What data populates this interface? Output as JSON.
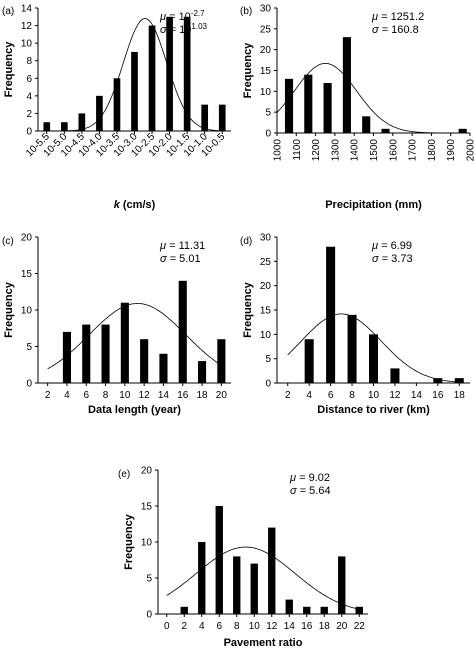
{
  "chart_data": [
    {
      "id": "a",
      "panel_label": "(a)",
      "type": "bar",
      "xlabel": "k (cm/s)",
      "ylabel": "Frequency",
      "ylim": [
        0,
        14
      ],
      "yticks": [
        0,
        2,
        4,
        6,
        8,
        10,
        12,
        14
      ],
      "categories": [
        "10-5.5",
        "10-5.0",
        "10-4.5",
        "10-4.0",
        "10-3.5",
        "10-3.0",
        "10-2.5",
        "10-2.0",
        "10-1.5",
        "10-1.0",
        "10-0.5"
      ],
      "values": [
        1,
        1,
        2,
        4,
        6,
        9,
        12,
        13,
        13,
        3,
        3
      ],
      "fit_curve": {
        "type": "normal",
        "mu_exp": -2.7,
        "sigma_exp": 1.03,
        "peak": 12.8
      },
      "stats": {
        "mu_prefix": " = 10",
        "mu_sup": "-2.7",
        "sigma_prefix": " = 10",
        "sigma_sup": "1.03"
      }
    },
    {
      "id": "b",
      "panel_label": "(b)",
      "type": "bar",
      "xlabel": "Precipitation (mm)",
      "ylabel": "Frequency",
      "ylim": [
        0,
        30
      ],
      "yticks": [
        0,
        5,
        10,
        15,
        20,
        25,
        30
      ],
      "xticks": [
        "1000",
        "1100",
        "1200",
        "1300",
        "1400",
        "1500",
        "1600",
        "1700",
        "1800",
        "1900",
        "2000"
      ],
      "x": [
        1100,
        1200,
        1300,
        1400,
        1500,
        1600,
        1700,
        1800,
        1900,
        2000
      ],
      "values": [
        13,
        14,
        12,
        23,
        4,
        1,
        0,
        0,
        0,
        1
      ],
      "fit_curve": {
        "type": "normal",
        "mu": 1251.2,
        "sigma": 160.8,
        "peak": 16.7
      },
      "stats": {
        "mu_text": " = 1251.2",
        "sigma_text": " = 160.8"
      }
    },
    {
      "id": "c",
      "panel_label": "(c)",
      "type": "bar",
      "xlabel": "Data length (year)",
      "ylabel": "Frequency",
      "ylim": [
        0,
        20
      ],
      "yticks": [
        0,
        5,
        10,
        15,
        20
      ],
      "xticks": [
        "2",
        "4",
        "6",
        "8",
        "10",
        "12",
        "14",
        "16",
        "18",
        "20"
      ],
      "x": [
        4,
        6,
        8,
        10,
        12,
        14,
        16,
        18,
        20
      ],
      "values": [
        7,
        8,
        8,
        11,
        6,
        4,
        14,
        3,
        6
      ],
      "fit_curve": {
        "type": "normal",
        "mu": 11.31,
        "sigma": 5.01,
        "peak": 10.9
      },
      "stats": {
        "mu_text": " = 11.31",
        "sigma_text": " = 5.01"
      }
    },
    {
      "id": "d",
      "panel_label": "(d)",
      "type": "bar",
      "xlabel": "Distance to river (km)",
      "ylabel": "Frequency",
      "ylim": [
        0,
        30
      ],
      "yticks": [
        0,
        5,
        10,
        15,
        20,
        25,
        30
      ],
      "xticks": [
        "2",
        "4",
        "6",
        "8",
        "10",
        "12",
        "14",
        "16",
        "18"
      ],
      "x": [
        4,
        6,
        8,
        10,
        12,
        14,
        16,
        18
      ],
      "values": [
        9,
        28,
        14,
        10,
        3,
        0,
        1,
        1
      ],
      "fit_curve": {
        "type": "normal",
        "mu": 6.99,
        "sigma": 3.73,
        "peak": 14.2
      },
      "stats": {
        "mu_text": " = 6.99",
        "sigma_text": " = 3.73"
      }
    },
    {
      "id": "e",
      "panel_label": "(e)",
      "type": "bar",
      "xlabel": "Pavement ratio",
      "ylabel": "Frequency",
      "ylim": [
        0,
        20
      ],
      "yticks": [
        0,
        5,
        10,
        15,
        20
      ],
      "xticks": [
        "0",
        "2",
        "4",
        "6",
        "8",
        "10",
        "12",
        "14",
        "16",
        "18",
        "20",
        "22"
      ],
      "x": [
        2,
        4,
        6,
        8,
        10,
        12,
        14,
        16,
        18,
        20,
        22
      ],
      "values": [
        1,
        10,
        15,
        8,
        7,
        12,
        2,
        1,
        1,
        8,
        1
      ],
      "fit_curve": {
        "type": "normal",
        "mu": 9.02,
        "sigma": 5.64,
        "peak": 9.3
      },
      "stats": {
        "mu_text": " = 9.02",
        "sigma_text": " = 5.64"
      }
    }
  ],
  "symbols": {
    "mu": "μ",
    "sigma": "σ"
  }
}
